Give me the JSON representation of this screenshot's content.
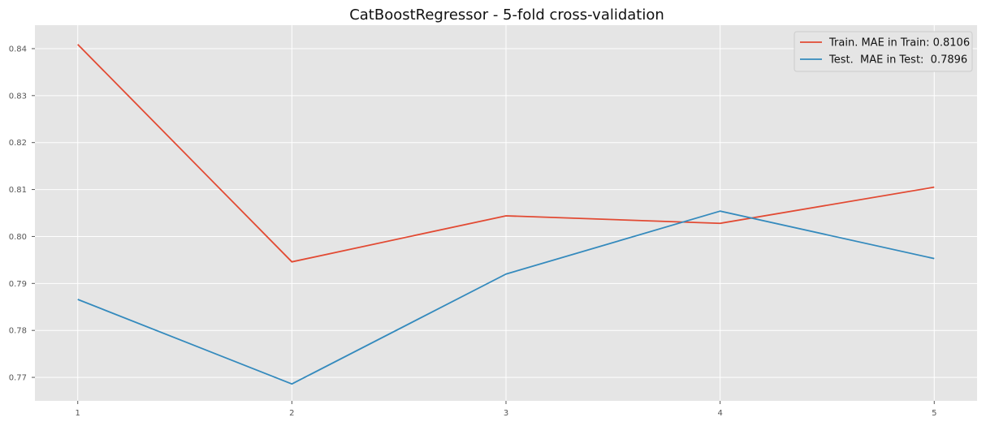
{
  "chart_data": {
    "type": "line",
    "title": "CatBoostRegressor - 5-fold cross-validation",
    "xlabel": "",
    "ylabel": "",
    "x": [
      1,
      2,
      3,
      4,
      5
    ],
    "xlim": [
      0.8,
      5.2
    ],
    "ylim": [
      0.765,
      0.845
    ],
    "x_ticks": [
      "1",
      "2",
      "3",
      "4",
      "5"
    ],
    "y_ticks": [
      "0.77",
      "0.78",
      "0.79",
      "0.80",
      "0.81",
      "0.82",
      "0.83",
      "0.84"
    ],
    "grid": true,
    "legend_position": "top-right",
    "series": [
      {
        "name": "Train. MAE in Train: 0.8106",
        "color": "#e24a33",
        "values": [
          0.8409,
          0.7946,
          0.8044,
          0.8028,
          0.8105
        ]
      },
      {
        "name": "Test.  MAE in Test:  0.7896",
        "color": "#348abd",
        "values": [
          0.7866,
          0.7686,
          0.792,
          0.8054,
          0.7953
        ]
      }
    ]
  },
  "colors": {
    "plot_background": "#e5e5e5",
    "grid": "#ffffff"
  }
}
